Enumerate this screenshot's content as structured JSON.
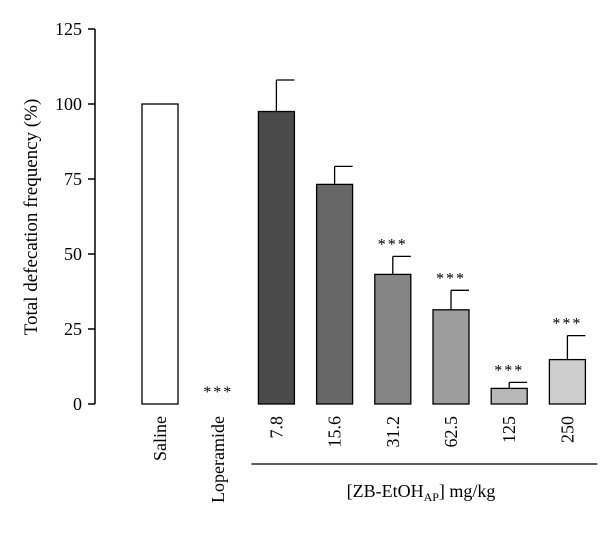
{
  "chart_data": {
    "type": "bar",
    "ylabel": "Total defecation frequency (%)",
    "ylim": [
      0,
      125
    ],
    "yticks": [
      0,
      25,
      50,
      75,
      100,
      125
    ],
    "categories": [
      "Saline",
      "Loperamide",
      "7.8",
      "15.6",
      "31.2",
      "62.5",
      "125",
      "250"
    ],
    "values": [
      100,
      0,
      97.5,
      73.2,
      43.2,
      31.4,
      5.2,
      14.8
    ],
    "errors": [
      0,
      0,
      10.5,
      6.0,
      6.0,
      6.5,
      2.0,
      8.0
    ],
    "significance": [
      "",
      "***",
      "",
      "",
      "***",
      "***",
      "***",
      "***"
    ],
    "bar_colors": [
      "#ffffff",
      "#ffffff",
      "#4a4a4a",
      "#676767",
      "#858585",
      "#9d9d9d",
      "#b8b8b8",
      "#cecece"
    ],
    "group_label": {
      "prefix": "[ZB-EtOH",
      "subscript": "AP",
      "suffix": "] mg/kg"
    },
    "grid": false,
    "legend": "none"
  }
}
